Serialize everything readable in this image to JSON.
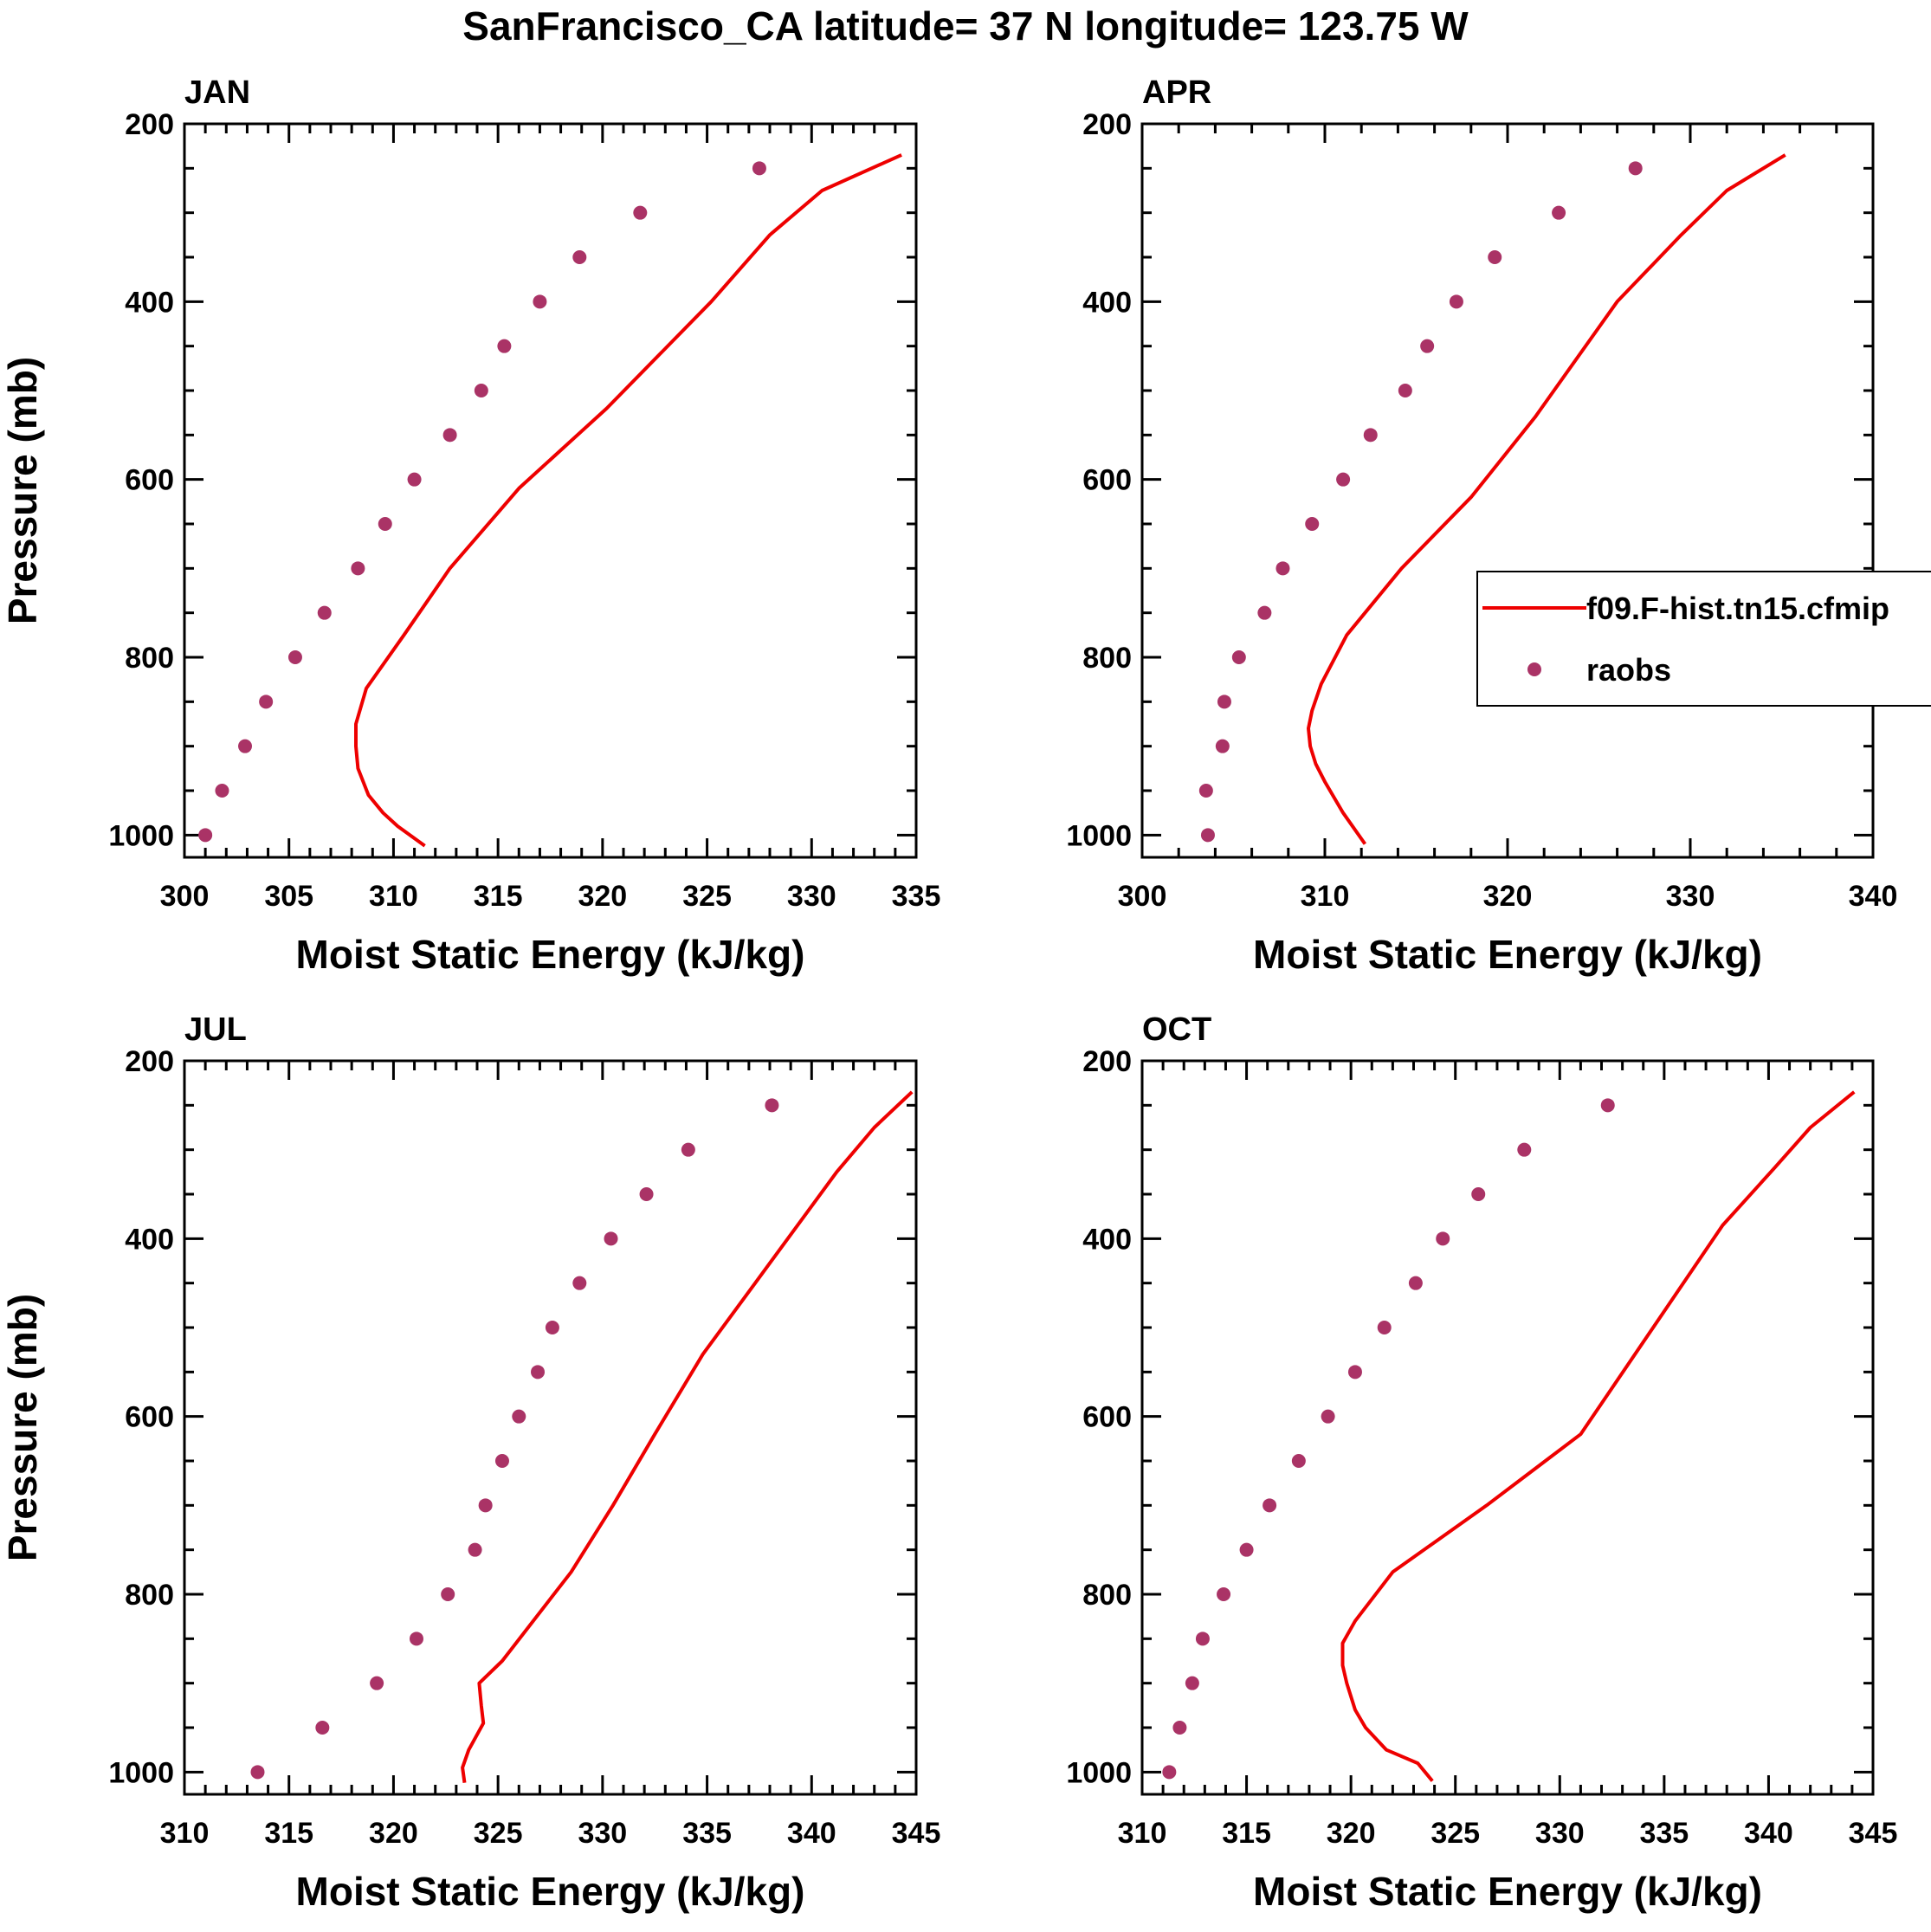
{
  "figure_title": "SanFrancisco_CA  latitude= 37 N longitude= 123.75 W",
  "colors": {
    "model": "#ee0000",
    "obs": "#aa3366",
    "axis": "#000000"
  },
  "legend": {
    "model_label": "f09.F-hist.tn15.cfmip",
    "obs_label": "raobs"
  },
  "chart_data": [
    {
      "type": "line",
      "title": "JAN",
      "xlabel": "Moist Static Energy (kJ/kg)",
      "ylabel": "Pressure (mb)",
      "xlim": [
        300,
        335
      ],
      "ylim": [
        200,
        1025
      ],
      "xticks": [
        300,
        305,
        310,
        315,
        320,
        325,
        330,
        335
      ],
      "yticks": [
        200,
        400,
        600,
        800,
        1000
      ],
      "series": [
        {
          "name": "f09.F-hist.tn15.cfmip",
          "style": "line",
          "x": [
            311.5,
            310.2,
            309.5,
            308.8,
            308.3,
            308.2,
            308.2,
            308.7,
            310.5,
            312.7,
            316.0,
            320.2,
            325.2,
            328.0,
            330.5,
            334.3
          ],
          "y": [
            1012,
            990,
            975,
            955,
            925,
            900,
            875,
            835,
            775,
            700,
            610,
            520,
            400,
            325,
            275,
            235
          ]
        },
        {
          "name": "raobs",
          "style": "markers",
          "x": [
            301.0,
            301.8,
            302.9,
            303.9,
            305.3,
            306.7,
            308.3,
            309.6,
            311.0,
            312.7,
            314.2,
            315.3,
            317.0,
            318.9,
            321.8,
            327.5
          ],
          "y": [
            1000,
            950,
            900,
            850,
            800,
            750,
            700,
            650,
            600,
            550,
            500,
            450,
            400,
            350,
            300,
            250
          ]
        }
      ]
    },
    {
      "type": "line",
      "title": "APR",
      "xlabel": "Moist Static Energy (kJ/kg)",
      "ylabel": "",
      "xlim": [
        300,
        340
      ],
      "ylim": [
        200,
        1025
      ],
      "xticks": [
        300,
        310,
        320,
        330,
        340
      ],
      "yticks": [
        200,
        400,
        600,
        800,
        1000
      ],
      "series": [
        {
          "name": "f09.F-hist.tn15.cfmip",
          "style": "line",
          "x": [
            312.2,
            311.0,
            310.0,
            309.5,
            309.2,
            309.1,
            309.3,
            309.8,
            311.2,
            314.2,
            318.0,
            321.5,
            326.0,
            329.5,
            332.0,
            335.2
          ],
          "y": [
            1010,
            975,
            940,
            920,
            900,
            880,
            860,
            830,
            775,
            700,
            620,
            530,
            400,
            325,
            275,
            235
          ]
        },
        {
          "name": "raobs",
          "style": "markers",
          "x": [
            303.6,
            303.5,
            304.4,
            304.5,
            305.3,
            306.7,
            307.7,
            309.3,
            311.0,
            312.5,
            314.4,
            315.6,
            317.2,
            319.3,
            322.8,
            327.0
          ],
          "y": [
            1000,
            950,
            900,
            850,
            800,
            750,
            700,
            650,
            600,
            550,
            500,
            450,
            400,
            350,
            300,
            250
          ]
        }
      ]
    },
    {
      "type": "line",
      "title": "JUL",
      "xlabel": "Moist Static Energy (kJ/kg)",
      "ylabel": "Pressure (mb)",
      "xlim": [
        310,
        345
      ],
      "ylim": [
        200,
        1025
      ],
      "xticks": [
        310,
        315,
        320,
        325,
        330,
        335,
        340,
        345
      ],
      "yticks": [
        200,
        400,
        600,
        800,
        1000
      ],
      "series": [
        {
          "name": "f09.F-hist.tn15.cfmip",
          "style": "line",
          "x": [
            323.4,
            323.3,
            323.6,
            324.3,
            324.2,
            324.1,
            325.2,
            328.5,
            330.5,
            332.5,
            334.8,
            337.3,
            341.2,
            343.0,
            344.8
          ],
          "y": [
            1012,
            995,
            975,
            945,
            925,
            900,
            875,
            775,
            700,
            620,
            530,
            450,
            325,
            275,
            235
          ]
        },
        {
          "name": "raobs",
          "style": "markers",
          "x": [
            313.5,
            316.6,
            319.2,
            321.1,
            322.6,
            323.9,
            324.4,
            325.2,
            326.0,
            326.9,
            327.6,
            328.9,
            330.4,
            332.1,
            334.1,
            338.1
          ],
          "y": [
            1000,
            950,
            900,
            850,
            800,
            750,
            700,
            650,
            600,
            550,
            500,
            450,
            400,
            350,
            300,
            250
          ]
        }
      ]
    },
    {
      "type": "line",
      "title": "OCT",
      "xlabel": "Moist Static Energy (kJ/kg)",
      "ylabel": "",
      "xlim": [
        310,
        345
      ],
      "ylim": [
        200,
        1025
      ],
      "xticks": [
        310,
        315,
        320,
        325,
        330,
        335,
        340,
        345
      ],
      "yticks": [
        200,
        400,
        600,
        800,
        1000
      ],
      "series": [
        {
          "name": "f09.F-hist.tn15.cfmip",
          "style": "line",
          "x": [
            323.9,
            323.2,
            321.7,
            320.7,
            320.2,
            319.8,
            319.6,
            319.6,
            320.2,
            322.0,
            326.5,
            331.0,
            337.8,
            340.3,
            342.0,
            344.1
          ],
          "y": [
            1010,
            990,
            975,
            950,
            930,
            900,
            880,
            855,
            830,
            775,
            700,
            620,
            385,
            320,
            275,
            235
          ]
        },
        {
          "name": "raobs",
          "style": "markers",
          "x": [
            311.3,
            311.8,
            312.4,
            312.9,
            313.9,
            315.0,
            316.1,
            317.5,
            318.9,
            320.2,
            321.6,
            323.1,
            324.4,
            326.1,
            328.3,
            332.3
          ],
          "y": [
            1000,
            950,
            900,
            850,
            800,
            750,
            700,
            650,
            600,
            550,
            500,
            450,
            400,
            350,
            300,
            250
          ]
        }
      ]
    }
  ]
}
